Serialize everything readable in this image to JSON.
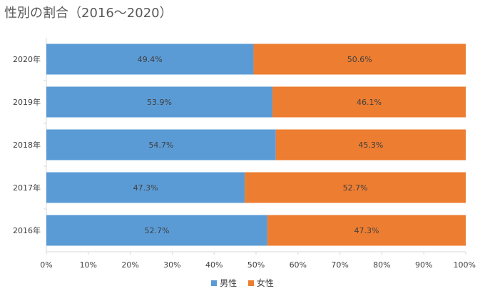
{
  "title": "性別の割合（2016～2020）",
  "chart_data": {
    "type": "bar",
    "orientation": "horizontal",
    "stacked": "percent",
    "title": "性別の割合（2016～2020）",
    "categories": [
      "2020年",
      "2019年",
      "2018年",
      "2017年",
      "2016年"
    ],
    "series": [
      {
        "name": "男性",
        "color": "#5b9bd5",
        "values": [
          49.4,
          53.9,
          54.7,
          47.3,
          52.7
        ],
        "labels": [
          "49.4%",
          "53.9%",
          "54.7%",
          "47.3%",
          "52.7%"
        ]
      },
      {
        "name": "女性",
        "color": "#ed7d31",
        "values": [
          50.6,
          46.1,
          45.3,
          52.7,
          47.3
        ],
        "labels": [
          "50.6%",
          "46.1%",
          "45.3%",
          "52.7%",
          "47.3%"
        ]
      }
    ],
    "xlim": [
      0,
      100
    ],
    "x_ticks": [
      "0%",
      "10%",
      "20%",
      "30%",
      "40%",
      "50%",
      "60%",
      "70%",
      "80%",
      "90%",
      "100%"
    ],
    "grid": false,
    "legend_position": "bottom",
    "axis_color": "#d9d9d9"
  }
}
